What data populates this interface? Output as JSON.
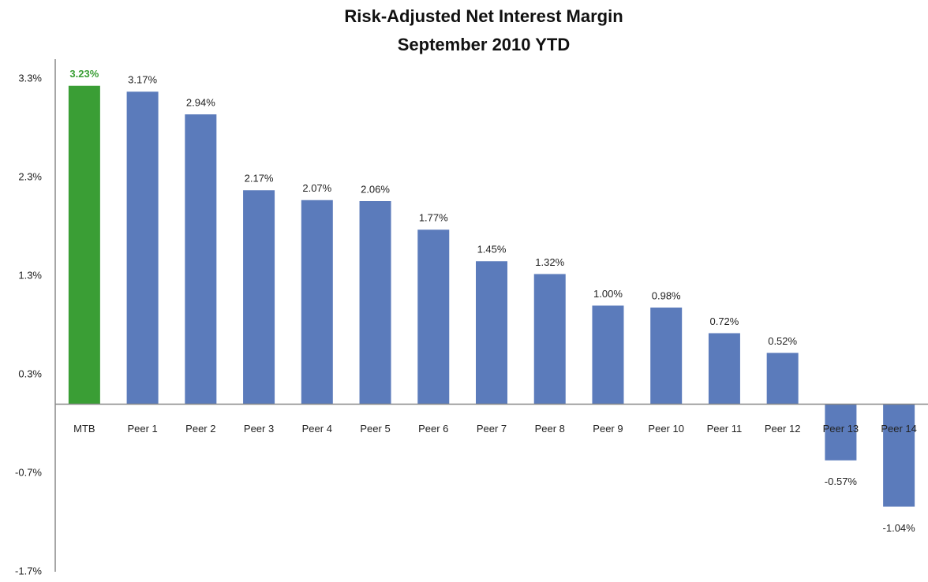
{
  "chart_data": {
    "type": "bar",
    "title": "Risk-Adjusted Net Interest Margin",
    "subtitle": "September 2010 YTD",
    "categories": [
      "MTB",
      "Peer 1",
      "Peer 2",
      "Peer 3",
      "Peer 4",
      "Peer 5",
      "Peer 6",
      "Peer 7",
      "Peer 8",
      "Peer 9",
      "Peer 10",
      "Peer 11",
      "Peer 12",
      "Peer 13",
      "Peer 14"
    ],
    "values": [
      3.23,
      3.17,
      2.94,
      2.17,
      2.07,
      2.06,
      1.77,
      1.45,
      1.32,
      1.0,
      0.98,
      0.72,
      0.52,
      -0.57,
      -1.04
    ],
    "value_labels": [
      "3.23%",
      "3.17%",
      "2.94%",
      "2.17%",
      "2.07%",
      "2.06%",
      "1.77%",
      "1.45%",
      "1.32%",
      "1.00%",
      "0.98%",
      "0.72%",
      "0.52%",
      "-0.57%",
      "-1.04%"
    ],
    "colors": [
      "#3a9e35",
      "#5b7bbb",
      "#5b7bbb",
      "#5b7bbb",
      "#5b7bbb",
      "#5b7bbb",
      "#5b7bbb",
      "#5b7bbb",
      "#5b7bbb",
      "#5b7bbb",
      "#5b7bbb",
      "#5b7bbb",
      "#5b7bbb",
      "#5b7bbb",
      "#5b7bbb"
    ],
    "ylim": [
      -1.7,
      3.5
    ],
    "yticks": [
      {
        "value": -1.7,
        "label": "-1.7%"
      },
      {
        "value": -0.7,
        "label": "-0.7%"
      },
      {
        "value": 0.3,
        "label": "0.3%"
      },
      {
        "value": 1.3,
        "label": "1.3%"
      },
      {
        "value": 2.3,
        "label": "2.3%"
      },
      {
        "value": 3.3,
        "label": "3.3%"
      }
    ],
    "grid": false
  }
}
